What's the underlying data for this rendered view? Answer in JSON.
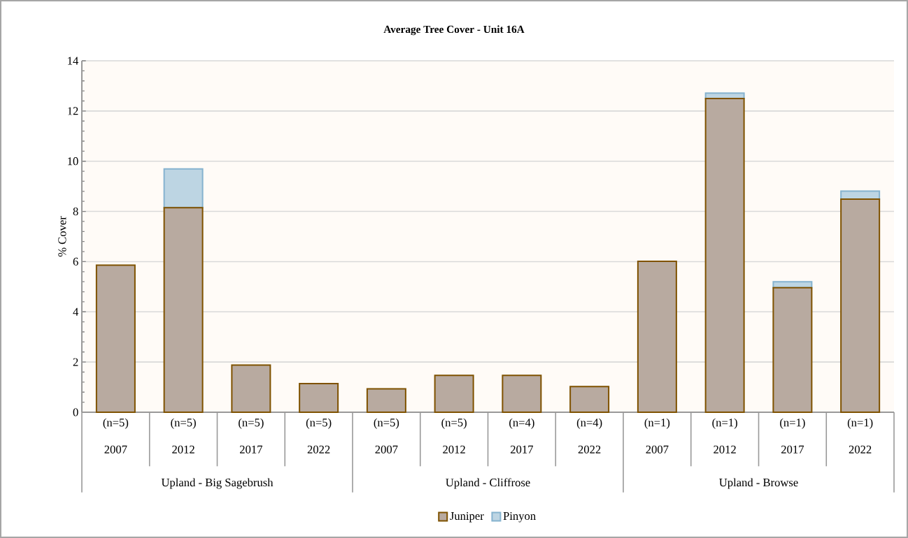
{
  "chart_data": {
    "type": "bar",
    "title": "Average Tree Cover - Unit 16A",
    "ylabel": "% Cover",
    "stacked": true,
    "categories": [
      "(n=5) 2007",
      "(n=5) 2012",
      "(n=5) 2017",
      "(n=5) 2022",
      "(n=5) 2007",
      "(n=5) 2012",
      "(n=4) 2017",
      "(n=4) 2022",
      "(n=1) 2007",
      "(n=1) 2012",
      "(n=1) 2017",
      "(n=1) 2022"
    ],
    "series": [
      {
        "name": "Juniper",
        "color": "#b8aaa0",
        "values": [
          5.86,
          8.15,
          1.88,
          1.14,
          0.93,
          1.47,
          1.47,
          1.02,
          6.01,
          12.5,
          4.96,
          8.49
        ]
      },
      {
        "name": "Pinyon",
        "color": "#bdd5e3",
        "values": [
          0,
          1.54,
          0,
          0,
          0,
          0,
          0,
          0,
          0,
          0.21,
          0.24,
          0.32
        ]
      }
    ],
    "annotations": [
      "Upland - Big Sagebrush",
      "Upland - Cliffrose",
      "Upland - Browse"
    ],
    "ylim": [
      0,
      14
    ],
    "yticks": [
      0,
      2,
      4,
      6,
      8,
      10,
      12,
      14
    ],
    "grid": "y",
    "legend": "bottom"
  }
}
